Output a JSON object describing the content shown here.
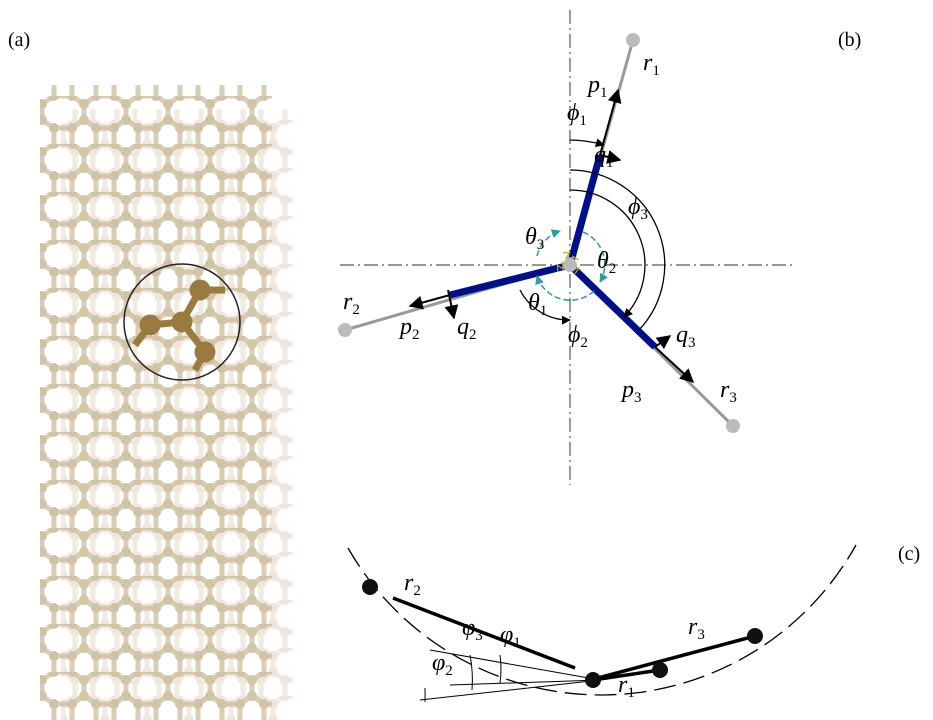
{
  "panels": {
    "a": {
      "label": "(a)"
    },
    "b": {
      "label": "(b)",
      "symbols": [
        {
          "base": "r",
          "sub": "1"
        },
        {
          "base": "p",
          "sub": "1"
        },
        {
          "base": "ϕ",
          "sub": "1"
        },
        {
          "base": "q",
          "sub": "1"
        },
        {
          "base": "ϕ",
          "sub": "3"
        },
        {
          "base": "θ",
          "sub": "3"
        },
        {
          "base": "θ",
          "sub": "2"
        },
        {
          "base": "r",
          "sub": "2"
        },
        {
          "base": "p",
          "sub": "2"
        },
        {
          "base": "q",
          "sub": "2"
        },
        {
          "base": "θ",
          "sub": "1"
        },
        {
          "base": "ϕ",
          "sub": "2"
        },
        {
          "base": "q",
          "sub": "3"
        },
        {
          "base": "p",
          "sub": "3"
        },
        {
          "base": "r",
          "sub": "3"
        }
      ]
    },
    "c": {
      "label": "(c)",
      "symbols": [
        {
          "base": "r",
          "sub": "2"
        },
        {
          "base": "r",
          "sub": "3"
        },
        {
          "base": "φ",
          "sub": "3"
        },
        {
          "base": "φ",
          "sub": "1"
        },
        {
          "base": "φ",
          "sub": "2"
        },
        {
          "base": "r",
          "sub": "1"
        }
      ]
    }
  }
}
